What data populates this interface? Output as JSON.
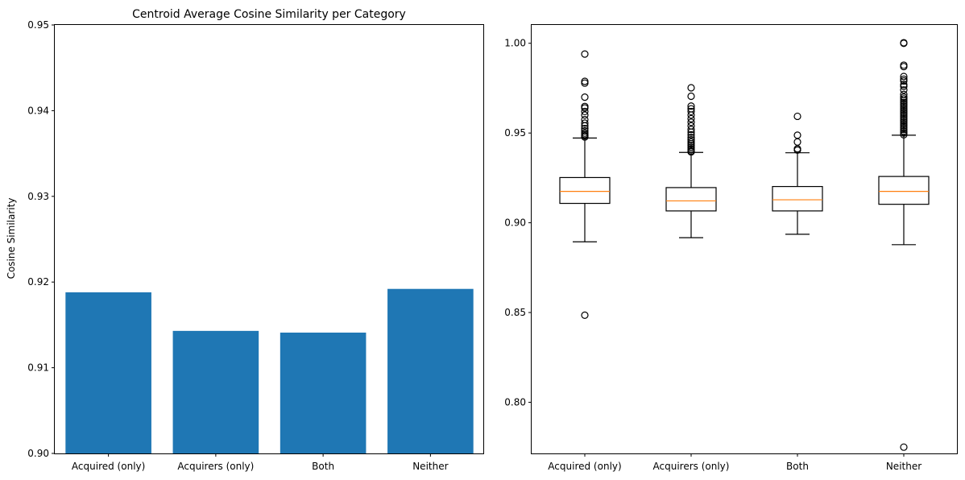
{
  "colors": {
    "bar": "#1f77b4",
    "median": "#ff7f0e",
    "axis": "#000000",
    "background": "#ffffff"
  },
  "chart_data": [
    {
      "type": "bar",
      "title": "Centroid Average Cosine Similarity per Category",
      "xlabel": "",
      "ylabel": "Cosine Similarity",
      "categories": [
        "Acquired (only)",
        "Acquirers (only)",
        "Both",
        "Neither"
      ],
      "values": [
        0.9188,
        0.9143,
        0.9141,
        0.9192
      ],
      "ylim": [
        0.9,
        0.95
      ],
      "yticks": [
        0.9,
        0.91,
        0.92,
        0.93,
        0.94,
        0.95
      ],
      "ytick_labels": [
        "0.90",
        "0.91",
        "0.92",
        "0.93",
        "0.94",
        "0.95"
      ],
      "grid": false
    },
    {
      "type": "box",
      "title": "",
      "xlabel": "",
      "ylabel": "",
      "categories": [
        "Acquired (only)",
        "Acquirers (only)",
        "Both",
        "Neither"
      ],
      "boxes": [
        {
          "whisker_low": 0.8894,
          "q1": 0.9108,
          "median": 0.9175,
          "q3": 0.9252,
          "whisker_high": 0.9472,
          "outliers": [
            0.8485,
            0.9478,
            0.9485,
            0.9492,
            0.95,
            0.9512,
            0.9525,
            0.954,
            0.9555,
            0.9575,
            0.96,
            0.962,
            0.964,
            0.9648,
            0.97,
            0.9778,
            0.9788,
            0.994
          ]
        },
        {
          "whisker_low": 0.8917,
          "q1": 0.9066,
          "median": 0.9122,
          "q3": 0.9196,
          "whisker_high": 0.9392,
          "outliers": [
            0.9395,
            0.94,
            0.941,
            0.942,
            0.943,
            0.944,
            0.945,
            0.9462,
            0.9475,
            0.949,
            0.9505,
            0.952,
            0.954,
            0.956,
            0.958,
            0.96,
            0.962,
            0.9635,
            0.965,
            0.9705,
            0.9752
          ]
        },
        {
          "whisker_low": 0.8936,
          "q1": 0.9066,
          "median": 0.9128,
          "q3": 0.9202,
          "whisker_high": 0.939,
          "outliers": [
            0.9405,
            0.9412,
            0.945,
            0.9488,
            0.9593
          ]
        },
        {
          "whisker_low": 0.8878,
          "q1": 0.9103,
          "median": 0.9175,
          "q3": 0.9258,
          "whisker_high": 0.9488,
          "outliers": [
            0.775,
            0.949,
            0.95,
            0.951,
            0.952,
            0.953,
            0.954,
            0.955,
            0.956,
            0.957,
            0.958,
            0.959,
            0.96,
            0.961,
            0.962,
            0.963,
            0.964,
            0.965,
            0.966,
            0.967,
            0.968,
            0.969,
            0.97,
            0.9715,
            0.974,
            0.976,
            0.977,
            0.979,
            0.98,
            0.9815,
            0.987,
            0.9878,
            1.0,
            1.0003
          ]
        }
      ],
      "ylim": [
        0.7715,
        1.0102
      ],
      "yticks": [
        0.8,
        0.85,
        0.9,
        0.95,
        1.0
      ],
      "ytick_labels": [
        "0.80",
        "0.85",
        "0.90",
        "0.95",
        "1.00"
      ],
      "grid": false
    }
  ]
}
